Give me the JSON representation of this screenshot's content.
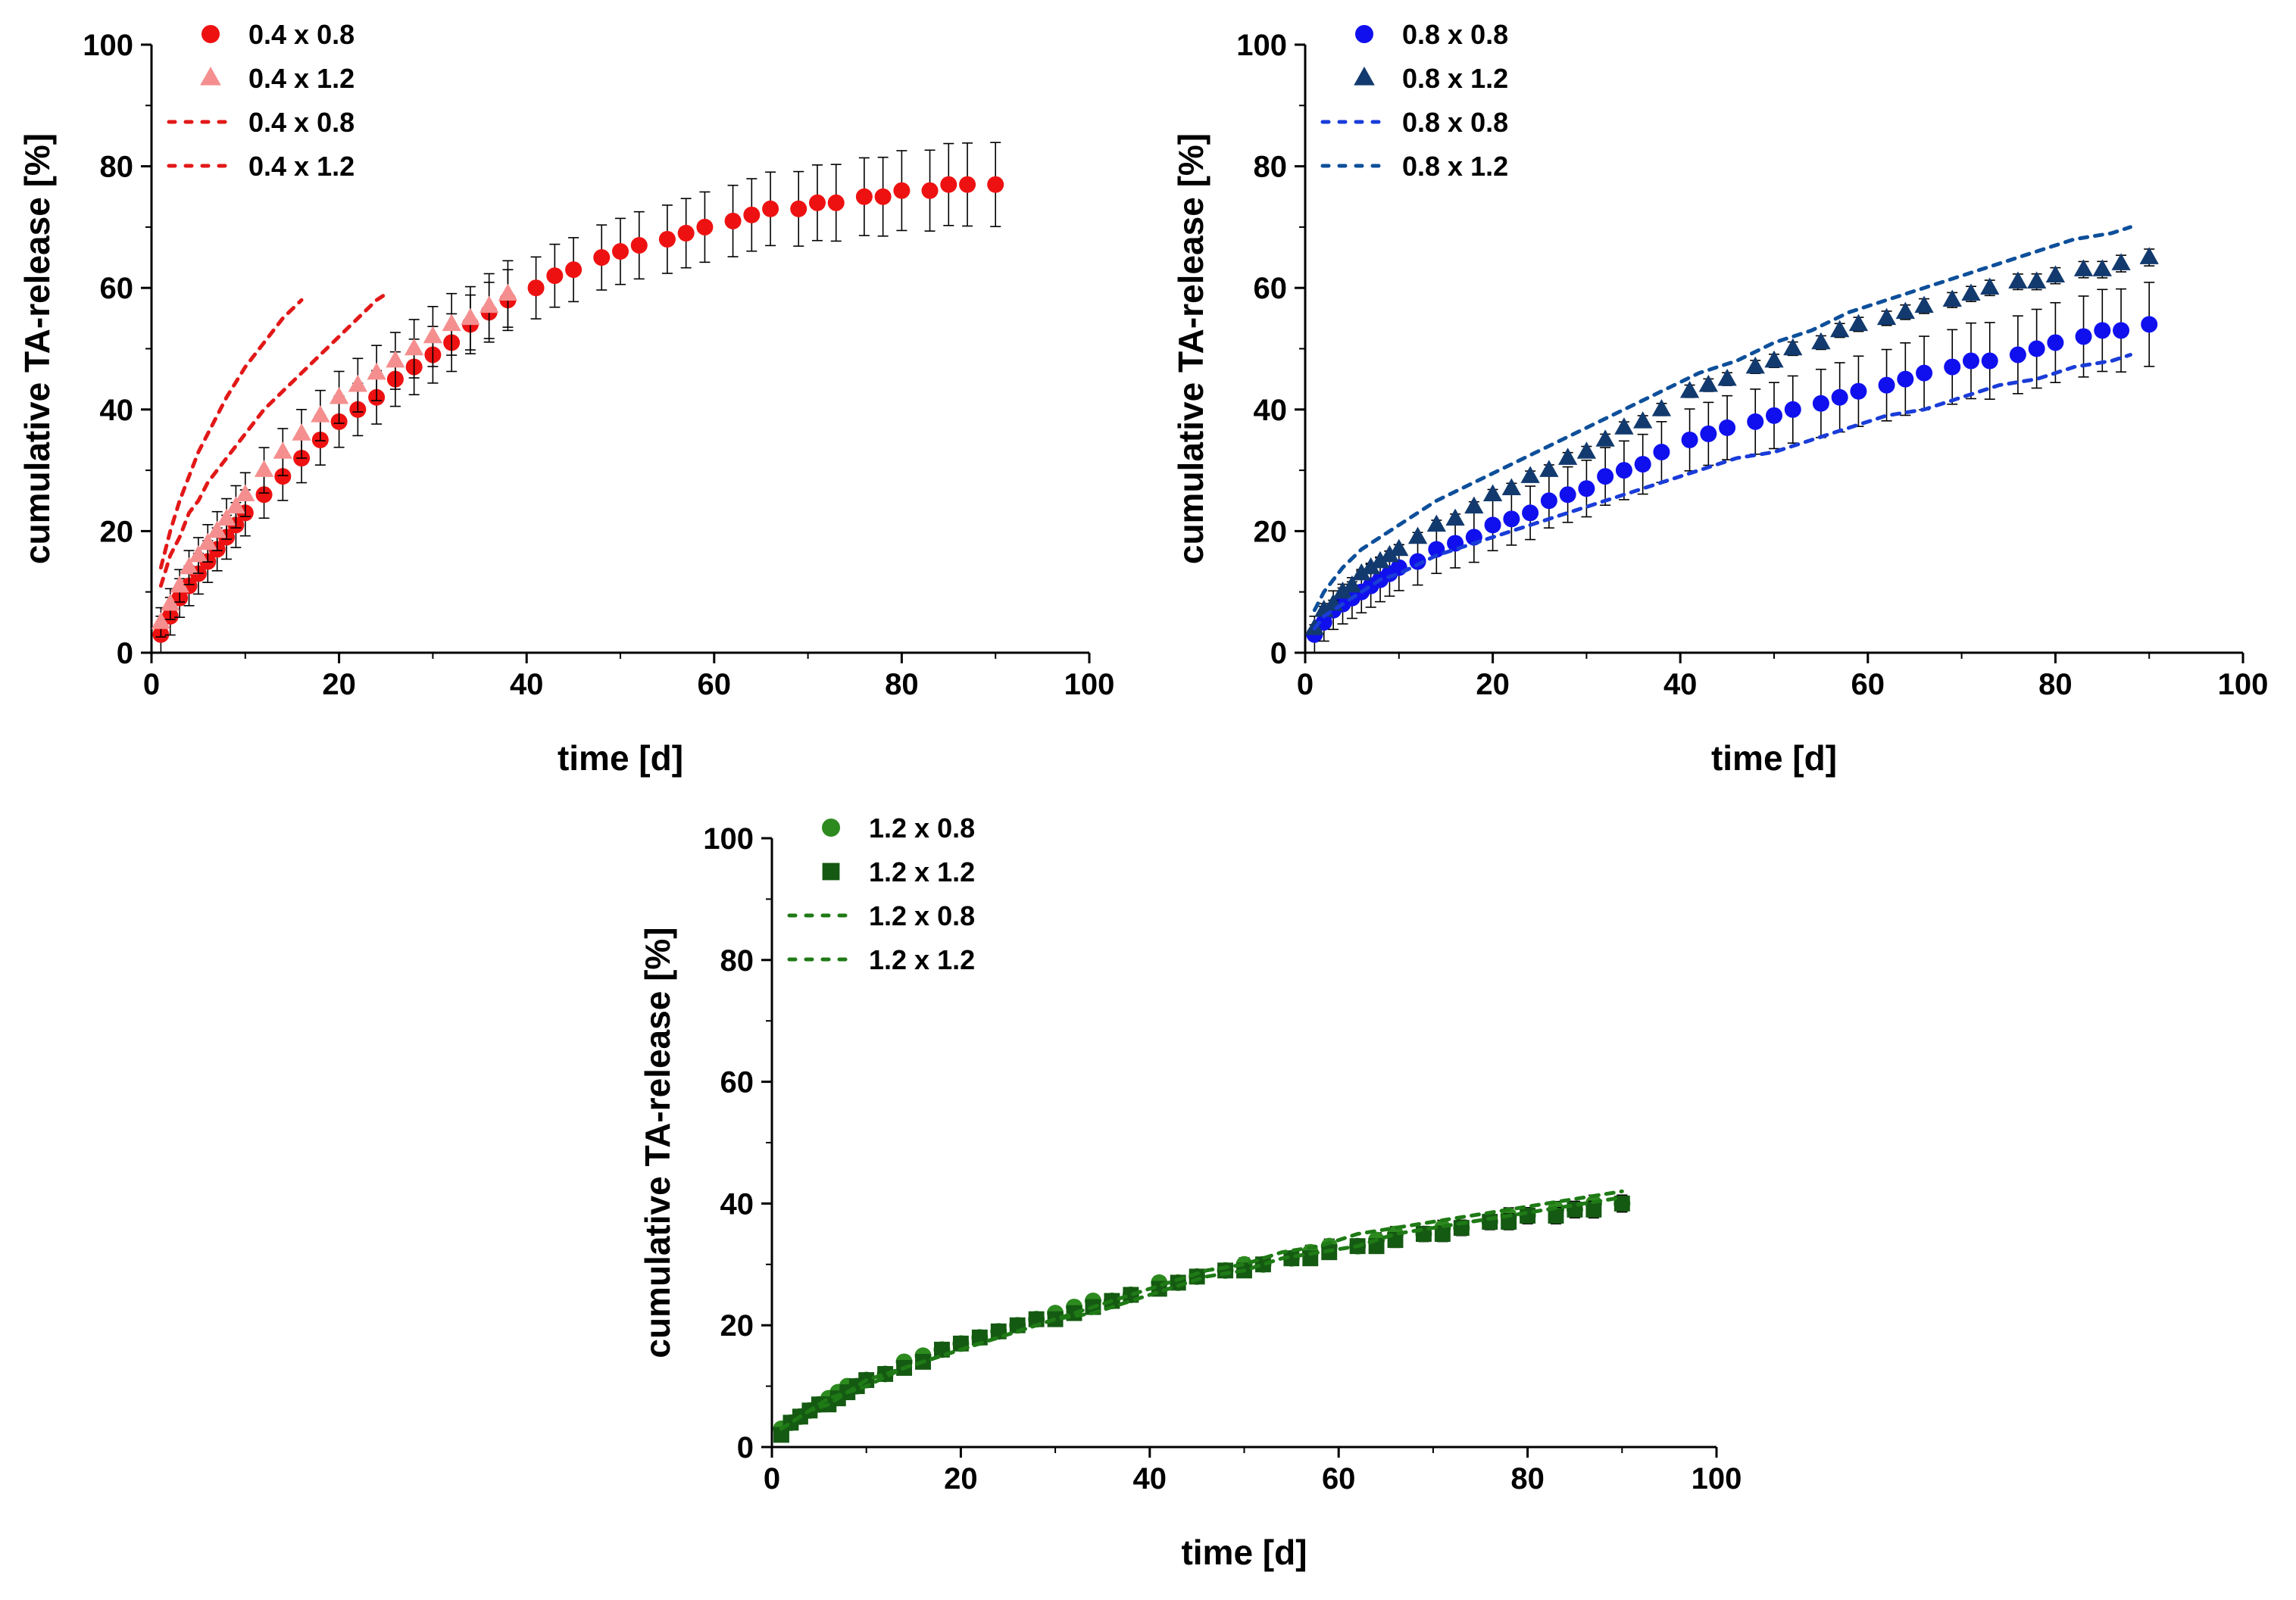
{
  "colors": {
    "red_marker": "#ee1111",
    "pink_marker": "#f58f8f",
    "red_fit": "#e21818",
    "blue_marker": "#1010ee",
    "navy_marker": "#123a6e",
    "blue_fit": "#1a3cd8",
    "navy_fit": "#0d4f9a",
    "green_marker": "#2d8a1f",
    "dgreen_marker": "#155a12",
    "green_fit": "#1f7a16",
    "errorbar": "#000000"
  },
  "chart_data": [
    {
      "id": "chart-1",
      "type": "scatter",
      "xlabel": "time [d]",
      "ylabel": "cumulative TA-release [%]",
      "xlim": [
        0,
        100
      ],
      "ylim": [
        0,
        100
      ],
      "xticks": [
        "0",
        "20",
        "40",
        "60",
        "80",
        "100"
      ],
      "yticks": [
        "0",
        "20",
        "40",
        "60",
        "80",
        "100"
      ],
      "legend": [
        "0.4 x 0.8",
        "0.4 x 1.2",
        "0.4 x 0.8",
        "0.4 x 1.2"
      ],
      "series": [
        {
          "name": "0.4 x 0.8",
          "kind": "marker",
          "marker": "circle",
          "color": "red_marker",
          "x": [
            1,
            2,
            3,
            4,
            5,
            6,
            7,
            8,
            9,
            10,
            12,
            14,
            16,
            18,
            20,
            22,
            24,
            26,
            28,
            30,
            32,
            34,
            36,
            38,
            41,
            43,
            45,
            48,
            50,
            52,
            55,
            57,
            59,
            62,
            64,
            66,
            69,
            71,
            73,
            76,
            78,
            80,
            83,
            85,
            87,
            90
          ],
          "y": [
            3,
            6,
            9,
            11,
            13,
            15,
            17,
            19,
            21,
            23,
            26,
            29,
            32,
            35,
            38,
            40,
            42,
            45,
            47,
            49,
            51,
            54,
            56,
            58,
            60,
            62,
            63,
            65,
            66,
            67,
            68,
            69,
            70,
            71,
            72,
            73,
            73,
            74,
            74,
            75,
            75,
            76,
            76,
            77,
            77,
            77
          ],
          "err": 5
        },
        {
          "name": "0.4 x 1.2",
          "kind": "marker",
          "marker": "triangle",
          "color": "pink_marker",
          "x": [
            1,
            2,
            3,
            4,
            5,
            6,
            7,
            8,
            9,
            10,
            12,
            14,
            16,
            18,
            20,
            22,
            24,
            26,
            28,
            30,
            32,
            34,
            36,
            38
          ],
          "y": [
            5,
            8,
            11,
            14,
            16,
            18,
            20,
            22,
            24,
            26,
            30,
            33,
            36,
            39,
            42,
            44,
            46,
            48,
            50,
            52,
            54,
            55,
            57,
            59
          ],
          "err": 4
        },
        {
          "name": "0.4 x 0.8",
          "kind": "fit",
          "color": "red_fit",
          "x": [
            1,
            2,
            3,
            4,
            5,
            6,
            8,
            10,
            12,
            14,
            16
          ],
          "y": [
            14,
            20,
            25,
            29,
            33,
            36,
            42,
            47,
            51,
            55,
            58
          ]
        },
        {
          "name": "0.4 x 1.2",
          "kind": "fit",
          "color": "red_fit",
          "x": [
            1,
            2,
            3,
            4,
            5,
            6,
            8,
            10,
            12,
            14,
            16,
            18,
            20,
            22,
            24,
            25
          ],
          "y": [
            11,
            16,
            19,
            23,
            25,
            28,
            32,
            36,
            40,
            43,
            46,
            49,
            52,
            55,
            58,
            59
          ]
        }
      ]
    },
    {
      "id": "chart-2",
      "type": "scatter",
      "xlabel": "time [d]",
      "ylabel": "cumulative TA-release [%]",
      "xlim": [
        0,
        100
      ],
      "ylim": [
        0,
        100
      ],
      "xticks": [
        "0",
        "20",
        "40",
        "60",
        "80",
        "100"
      ],
      "yticks": [
        "0",
        "20",
        "40",
        "60",
        "80",
        "100"
      ],
      "legend": [
        "0.8 x 0.8",
        "0.8 x 1.2",
        "0.8 x 0.8",
        "0.8 x 1.2"
      ],
      "series": [
        {
          "name": "0.8 x 0.8",
          "kind": "marker",
          "marker": "circle",
          "color": "blue_marker",
          "x": [
            1,
            2,
            3,
            4,
            5,
            6,
            7,
            8,
            9,
            10,
            12,
            14,
            16,
            18,
            20,
            22,
            24,
            26,
            28,
            30,
            32,
            34,
            36,
            38,
            41,
            43,
            45,
            48,
            50,
            52,
            55,
            57,
            59,
            62,
            64,
            66,
            69,
            71,
            73,
            76,
            78,
            80,
            83,
            85,
            87,
            90
          ],
          "y": [
            3,
            5,
            7,
            8,
            9,
            10,
            11,
            12,
            13,
            14,
            15,
            17,
            18,
            19,
            21,
            22,
            23,
            25,
            26,
            27,
            29,
            30,
            31,
            33,
            35,
            36,
            37,
            38,
            39,
            40,
            41,
            42,
            43,
            44,
            45,
            46,
            47,
            48,
            48,
            49,
            50,
            51,
            52,
            53,
            53,
            54
          ],
          "err": 5
        },
        {
          "name": "0.8 x 1.2",
          "kind": "marker",
          "marker": "triangle",
          "color": "navy_marker",
          "x": [
            1,
            2,
            3,
            4,
            5,
            6,
            7,
            8,
            9,
            10,
            12,
            14,
            16,
            18,
            20,
            22,
            24,
            26,
            28,
            30,
            32,
            34,
            36,
            38,
            41,
            43,
            45,
            48,
            50,
            52,
            55,
            57,
            59,
            62,
            64,
            66,
            69,
            71,
            73,
            76,
            78,
            80,
            83,
            85,
            87,
            90
          ],
          "y": [
            4,
            7,
            8,
            10,
            11,
            13,
            14,
            15,
            16,
            17,
            19,
            21,
            22,
            24,
            26,
            27,
            29,
            30,
            32,
            33,
            35,
            37,
            38,
            40,
            43,
            44,
            45,
            47,
            48,
            50,
            51,
            53,
            54,
            55,
            56,
            57,
            58,
            59,
            60,
            61,
            61,
            62,
            63,
            63,
            64,
            65
          ],
          "err": 1
        },
        {
          "name": "0.8 x 0.8",
          "kind": "fit",
          "color": "blue_fit",
          "x": [
            1,
            2,
            4,
            6,
            8,
            10,
            14,
            18,
            22,
            26,
            30,
            34,
            38,
            42,
            46,
            50,
            54,
            58,
            62,
            66,
            70,
            74,
            78,
            82,
            86,
            88
          ],
          "y": [
            4,
            6,
            8,
            10,
            12,
            13,
            16,
            18,
            20,
            22,
            24,
            26,
            28,
            30,
            32,
            33,
            35,
            37,
            39,
            40,
            42,
            44,
            45,
            47,
            48,
            49
          ]
        },
        {
          "name": "0.8 x 1.2",
          "kind": "fit",
          "color": "navy_fit",
          "x": [
            1,
            2,
            4,
            6,
            8,
            10,
            14,
            18,
            22,
            26,
            30,
            34,
            38,
            42,
            46,
            50,
            54,
            58,
            62,
            66,
            70,
            74,
            78,
            82,
            86,
            88
          ],
          "y": [
            7,
            10,
            14,
            17,
            19,
            21,
            25,
            28,
            31,
            34,
            37,
            40,
            43,
            46,
            48,
            51,
            53,
            56,
            58,
            60,
            62,
            64,
            66,
            68,
            69,
            70
          ]
        }
      ]
    },
    {
      "id": "chart-3",
      "type": "scatter",
      "xlabel": "time [d]",
      "ylabel": "cumulative TA-release [%]",
      "xlim": [
        0,
        100
      ],
      "ylim": [
        0,
        100
      ],
      "xticks": [
        "0",
        "20",
        "40",
        "60",
        "80",
        "100"
      ],
      "yticks": [
        "0",
        "20",
        "40",
        "60",
        "80",
        "100"
      ],
      "legend": [
        "1.2 x 0.8",
        "1.2 x 1.2",
        "1.2 x 0.8",
        "1.2 x 1.2"
      ],
      "series": [
        {
          "name": "1.2 x 0.8",
          "kind": "marker",
          "marker": "circle",
          "color": "green_marker",
          "x": [
            1,
            2,
            3,
            4,
            5,
            6,
            7,
            8,
            9,
            10,
            12,
            14,
            16,
            18,
            20,
            22,
            24,
            26,
            28,
            30,
            32,
            34,
            36,
            38,
            41,
            43,
            45,
            48,
            50,
            52,
            55,
            57,
            59,
            62,
            64,
            66,
            69,
            71,
            73,
            76,
            78,
            80,
            83,
            85,
            87,
            90
          ],
          "y": [
            3,
            4,
            5,
            6,
            7,
            8,
            9,
            10,
            10,
            11,
            12,
            14,
            15,
            16,
            17,
            18,
            19,
            20,
            21,
            22,
            23,
            24,
            24,
            25,
            27,
            27,
            28,
            29,
            30,
            30,
            31,
            32,
            33,
            33,
            34,
            35,
            35,
            36,
            36,
            37,
            38,
            38,
            39,
            39,
            40,
            40
          ],
          "err": 1
        },
        {
          "name": "1.2 x 1.2",
          "kind": "marker",
          "marker": "square",
          "color": "dgreen_marker",
          "x": [
            1,
            2,
            3,
            4,
            5,
            6,
            7,
            8,
            9,
            10,
            12,
            14,
            16,
            18,
            20,
            22,
            24,
            26,
            28,
            30,
            32,
            34,
            36,
            38,
            41,
            43,
            45,
            48,
            50,
            52,
            55,
            57,
            59,
            62,
            64,
            66,
            69,
            71,
            73,
            76,
            78,
            80,
            83,
            85,
            87,
            90
          ],
          "y": [
            2,
            4,
            5,
            6,
            7,
            7,
            8,
            9,
            10,
            11,
            12,
            13,
            14,
            16,
            17,
            18,
            19,
            20,
            21,
            21,
            22,
            23,
            24,
            25,
            26,
            27,
            28,
            29,
            29,
            30,
            31,
            31,
            32,
            33,
            33,
            34,
            35,
            35,
            36,
            37,
            37,
            38,
            38,
            39,
            39,
            40
          ],
          "err": 1
        },
        {
          "name": "1.2 x 0.8",
          "kind": "fit",
          "color": "green_fit",
          "x": [
            1,
            2,
            4,
            6,
            8,
            10,
            14,
            18,
            22,
            26,
            30,
            34,
            38,
            42,
            46,
            50,
            54,
            58,
            62,
            66,
            70,
            74,
            78,
            82,
            86,
            90
          ],
          "y": [
            3,
            4,
            6,
            8,
            9,
            11,
            13,
            15,
            17,
            19,
            21,
            23,
            25,
            27,
            29,
            30,
            32,
            33,
            35,
            36,
            37,
            38,
            39,
            40,
            41,
            42
          ]
        },
        {
          "name": "1.2 x 1.2",
          "kind": "fit",
          "color": "green_fit",
          "x": [
            1,
            2,
            4,
            6,
            8,
            10,
            14,
            18,
            22,
            26,
            30,
            34,
            38,
            42,
            46,
            50,
            54,
            58,
            62,
            66,
            70,
            74,
            78,
            82,
            86,
            90
          ],
          "y": [
            3,
            4,
            6,
            7,
            9,
            10,
            13,
            15,
            17,
            19,
            21,
            22,
            24,
            26,
            28,
            29,
            31,
            32,
            33,
            35,
            36,
            37,
            38,
            39,
            40,
            41
          ]
        }
      ]
    }
  ]
}
